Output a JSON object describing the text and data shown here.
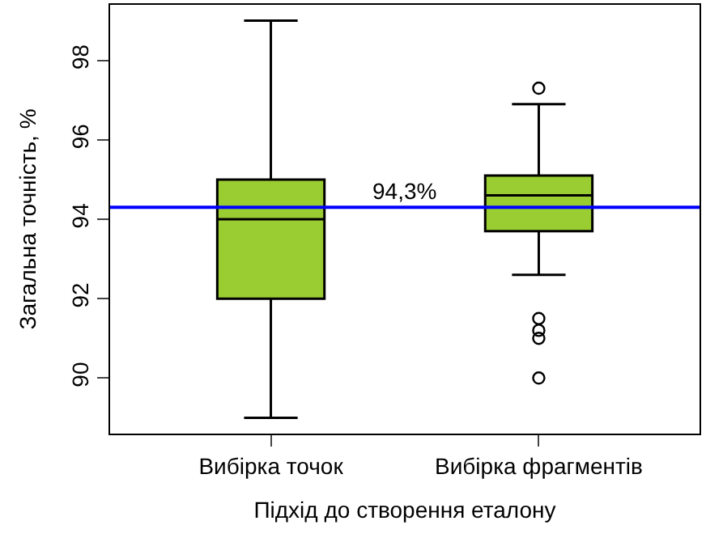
{
  "chart_data": {
    "type": "box",
    "xlabel": "Підхід до створення еталону",
    "ylabel": "Загальна точність, %",
    "categories": [
      "Вибірка точок",
      "Вибірка фрагментів"
    ],
    "color": "#9acd32",
    "boxes": [
      {
        "low": 89.0,
        "q1": 92.0,
        "median": 94.0,
        "q3": 95.0,
        "high": 99.0
      },
      {
        "low": 92.6,
        "q1": 93.7,
        "median": 94.6,
        "q3": 95.1,
        "high": 96.9,
        "outliers": [
          97.3,
          91.5,
          91.2,
          91.0,
          90.0
        ]
      }
    ],
    "ylim": [
      88.6,
      99.4
    ],
    "yticks": [
      90,
      92,
      94,
      96,
      98
    ],
    "ref_lines": [
      {
        "axis": "y",
        "value": 94.3,
        "label": "94,3%",
        "color": "#0000ff"
      }
    ]
  }
}
